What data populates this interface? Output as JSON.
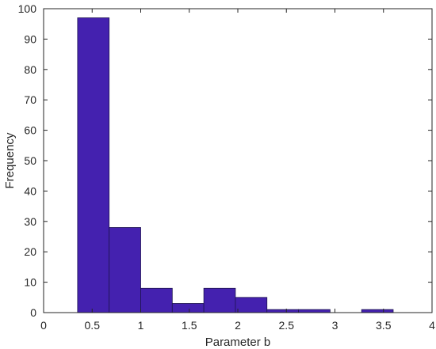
{
  "chart_data": {
    "type": "bar",
    "title": "",
    "xlabel": "Parameter b",
    "ylabel": "Frequency",
    "xlim": [
      0,
      4
    ],
    "ylim": [
      0,
      100
    ],
    "xticks": [
      "0",
      "0.5",
      "1",
      "1.5",
      "2",
      "2.5",
      "3",
      "3.5",
      "4"
    ],
    "yticks": [
      "0",
      "10",
      "20",
      "30",
      "40",
      "50",
      "60",
      "70",
      "80",
      "90",
      "100"
    ],
    "grid": false,
    "bins": [
      {
        "x0": 0.35,
        "x1": 0.675,
        "value": 97
      },
      {
        "x0": 0.675,
        "x1": 1.0,
        "value": 28
      },
      {
        "x0": 1.0,
        "x1": 1.325,
        "value": 8
      },
      {
        "x0": 1.325,
        "x1": 1.65,
        "value": 3
      },
      {
        "x0": 1.65,
        "x1": 1.975,
        "value": 8
      },
      {
        "x0": 1.975,
        "x1": 2.3,
        "value": 5
      },
      {
        "x0": 2.3,
        "x1": 2.625,
        "value": 1
      },
      {
        "x0": 2.625,
        "x1": 2.95,
        "value": 1
      },
      {
        "x0": 2.95,
        "x1": 3.275,
        "value": 0
      },
      {
        "x0": 3.275,
        "x1": 3.6,
        "value": 1
      }
    ],
    "colors": {
      "bar_fill": "#4421AF",
      "bar_edge": "#1E1450",
      "axis": "#262626"
    }
  }
}
